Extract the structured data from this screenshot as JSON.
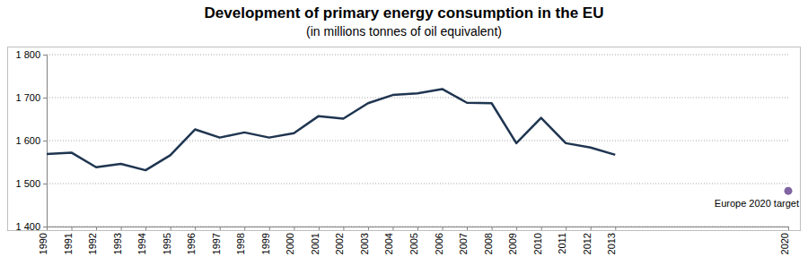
{
  "chart_data": {
    "type": "line",
    "title": "Development of primary energy consumption in the EU",
    "subtitle": "(in millions tonnes of oil equivalent)",
    "x": [
      1990,
      1991,
      1992,
      1993,
      1994,
      1995,
      1996,
      1997,
      1998,
      1999,
      2000,
      2001,
      2002,
      2003,
      2004,
      2005,
      2006,
      2007,
      2008,
      2009,
      2010,
      2011,
      2012,
      2013,
      2020
    ],
    "series": [
      {
        "type": "line",
        "color": "#1f3550",
        "line_style": "solid",
        "values": [
          1569,
          1572,
          1538,
          1546,
          1531,
          1566,
          1626,
          1607,
          1619,
          1607,
          1617,
          1657,
          1651,
          1687,
          1706,
          1710,
          1720,
          1688,
          1687,
          1594,
          1653,
          1594,
          1584,
          1567,
          null
        ]
      },
      {
        "type": "scatter",
        "name": "Europe 2020 target",
        "color": "#8064a2",
        "marker": "circle",
        "values": [
          null,
          null,
          null,
          null,
          null,
          null,
          null,
          null,
          null,
          null,
          null,
          null,
          null,
          null,
          null,
          null,
          null,
          null,
          null,
          null,
          null,
          null,
          null,
          null,
          1483
        ]
      }
    ],
    "xlim": [
      1990,
      2020
    ],
    "xticks": [
      1990,
      1991,
      1992,
      1993,
      1994,
      1995,
      1996,
      1997,
      1998,
      1999,
      2000,
      2001,
      2002,
      2003,
      2004,
      2005,
      2006,
      2007,
      2008,
      2009,
      2010,
      2011,
      2012,
      2013,
      2020
    ],
    "ylim": [
      1400,
      1800
    ],
    "yticks": [
      {
        "value": 1400,
        "label": "1 400"
      },
      {
        "value": 1500,
        "label": "1 500"
      },
      {
        "value": 1600,
        "label": "1 600"
      },
      {
        "value": 1700,
        "label": "1 700"
      },
      {
        "value": 1800,
        "label": "1 800"
      }
    ],
    "grid": true
  }
}
